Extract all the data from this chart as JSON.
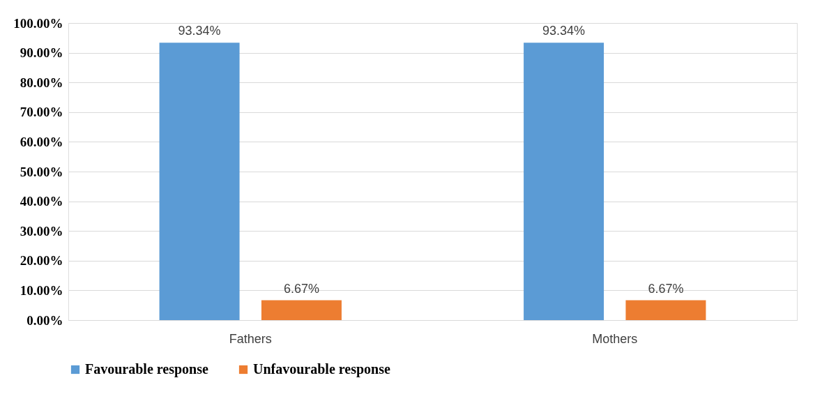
{
  "chart_data": {
    "type": "bar",
    "categories": [
      "Fathers",
      "Mothers"
    ],
    "series": [
      {
        "name": "Favourable response",
        "color": "#5b9bd5",
        "values": [
          93.34,
          93.34
        ],
        "value_labels": [
          "93.34%",
          "93.34%"
        ]
      },
      {
        "name": "Unfavourable response",
        "color": "#ed7d31",
        "values": [
          6.67,
          6.67
        ],
        "value_labels": [
          "6.67%",
          "6.67%"
        ]
      }
    ],
    "ylim": [
      0,
      100
    ],
    "yticks": [
      {
        "value": 0,
        "label": "0.00%"
      },
      {
        "value": 10,
        "label": "10.00%"
      },
      {
        "value": 20,
        "label": "20.00%"
      },
      {
        "value": 30,
        "label": "30.00%"
      },
      {
        "value": 40,
        "label": "40.00%"
      },
      {
        "value": 50,
        "label": "50.00%"
      },
      {
        "value": 60,
        "label": "60.00%"
      },
      {
        "value": 70,
        "label": "70.00%"
      },
      {
        "value": 80,
        "label": "80.00%"
      },
      {
        "value": 90,
        "label": "90.00%"
      },
      {
        "value": 100,
        "label": "100.00%"
      }
    ],
    "grid": "y",
    "legend": "bottom"
  }
}
